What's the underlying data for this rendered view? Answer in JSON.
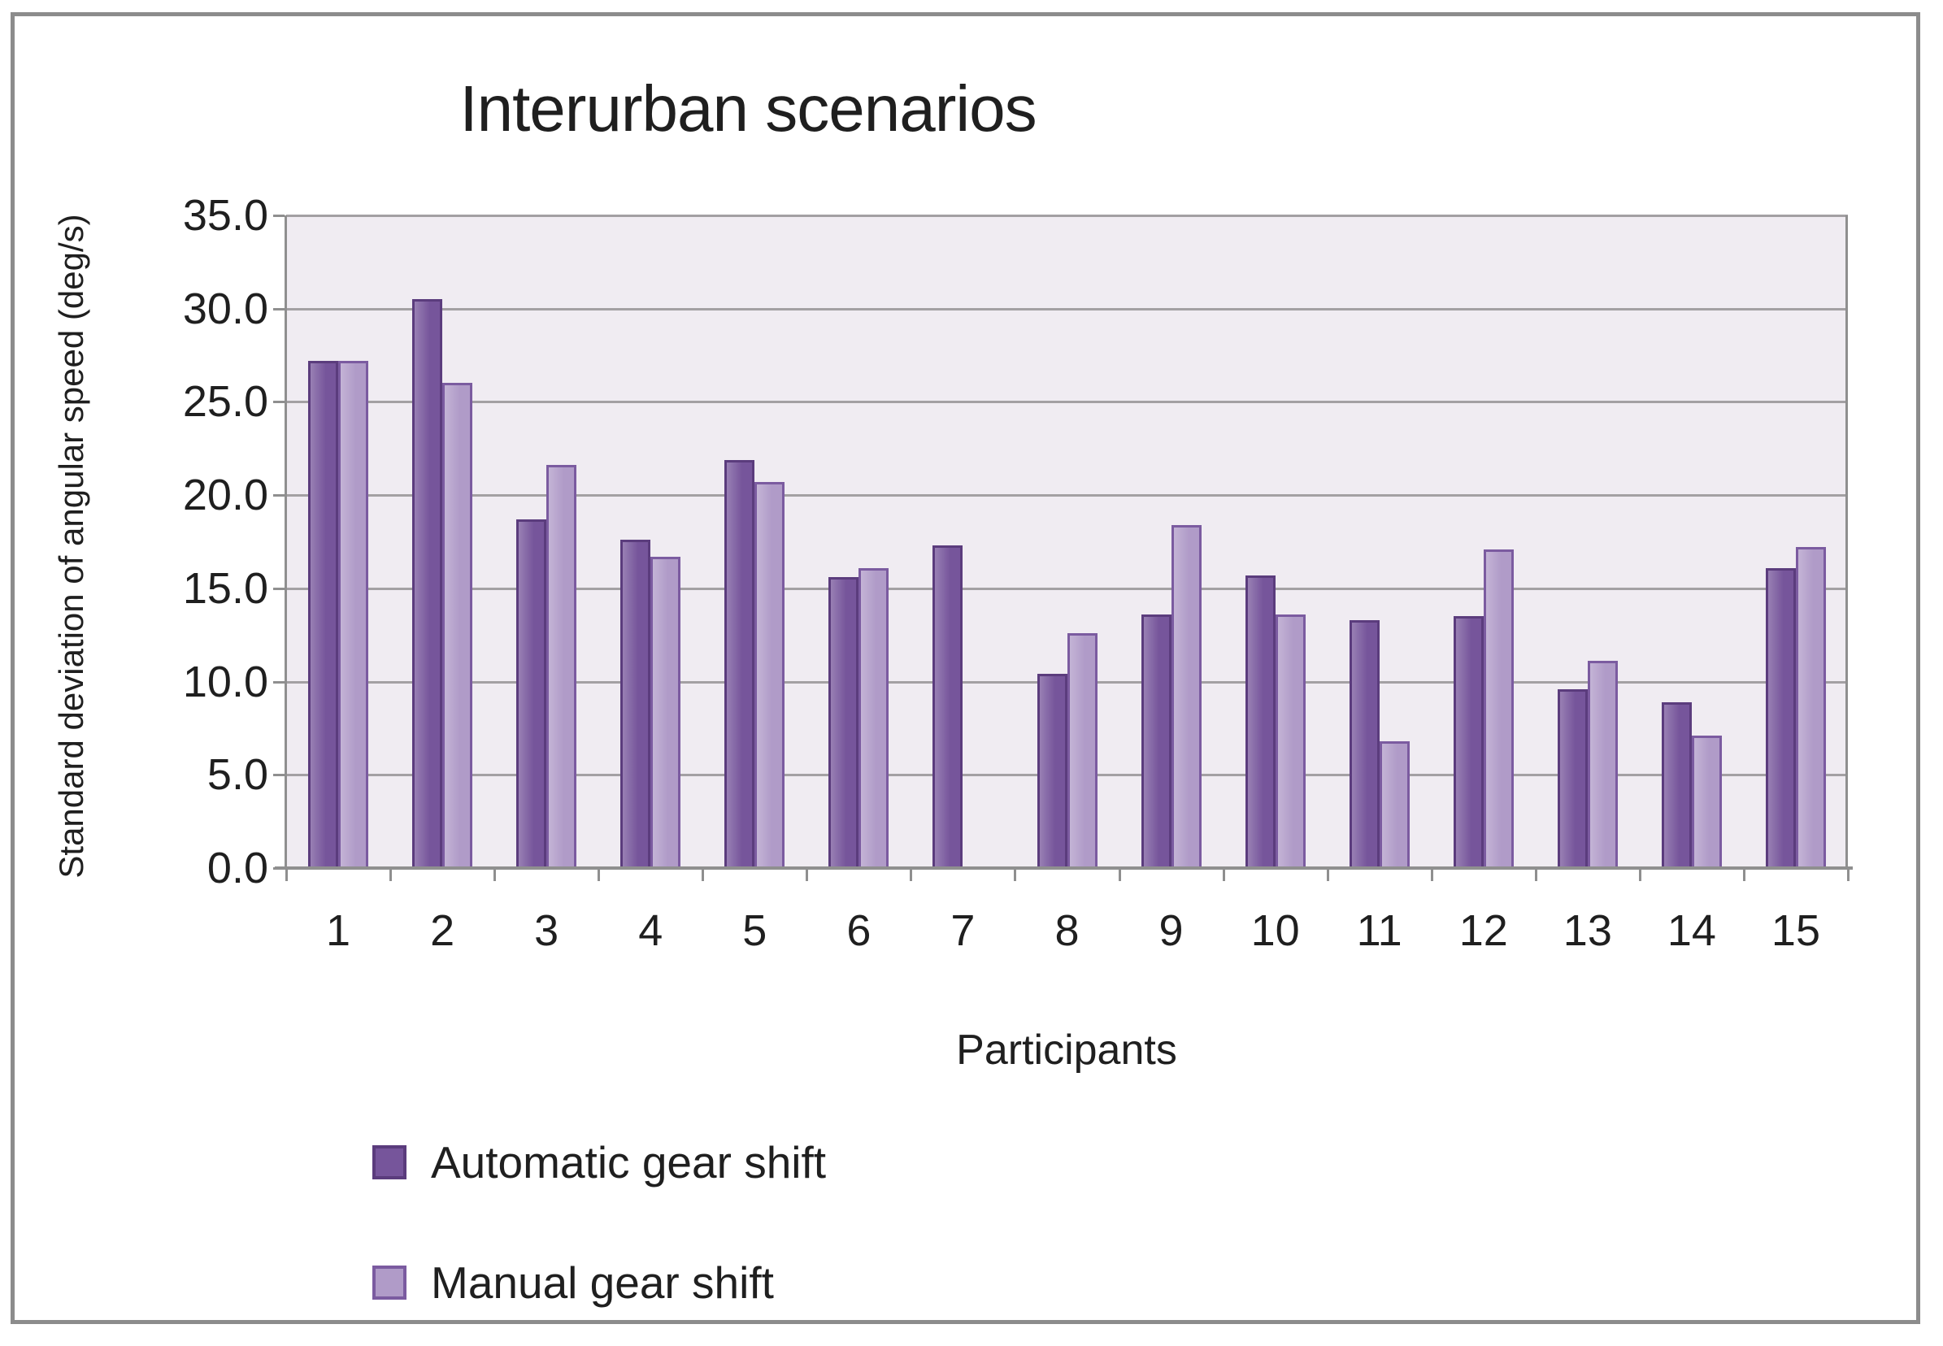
{
  "chart_data": {
    "type": "bar",
    "title": "Interurban scenarios",
    "xlabel": "Participants",
    "ylabel": "Standard deviation of angular speed (deg/s)",
    "categories": [
      "1",
      "2",
      "3",
      "4",
      "5",
      "6",
      "7",
      "8",
      "9",
      "10",
      "11",
      "12",
      "13",
      "14",
      "15"
    ],
    "series": [
      {
        "name": "Automatic gear shift",
        "color": "#76559b",
        "border_color": "#5b3c7d",
        "values": [
          27.2,
          30.5,
          18.7,
          17.6,
          21.9,
          15.6,
          17.3,
          10.4,
          13.6,
          15.7,
          13.3,
          13.5,
          9.6,
          8.9,
          16.1
        ]
      },
      {
        "name": "Manual gear shift",
        "color": "#b09bc8",
        "border_color": "#7b5ba0",
        "values": [
          27.2,
          26.0,
          21.6,
          16.7,
          20.7,
          16.1,
          0,
          12.6,
          18.4,
          13.6,
          6.8,
          17.1,
          11.1,
          7.1,
          17.2
        ]
      }
    ],
    "ylim": [
      0,
      35
    ],
    "ytick_step": 5,
    "ytick_labels": [
      "35.0",
      "30.0",
      "25.0",
      "20.0",
      "15.0",
      "10.0",
      "5.0",
      "0.0"
    ],
    "grid": true,
    "legend_position": "bottom-left",
    "plot_bg_color": "#f0ecf2",
    "gridline_color": "#a3a0a3",
    "axis_color": "#8f8f8f",
    "text_color": "#1f1f1f",
    "frame_color": "#8c8c8c"
  }
}
